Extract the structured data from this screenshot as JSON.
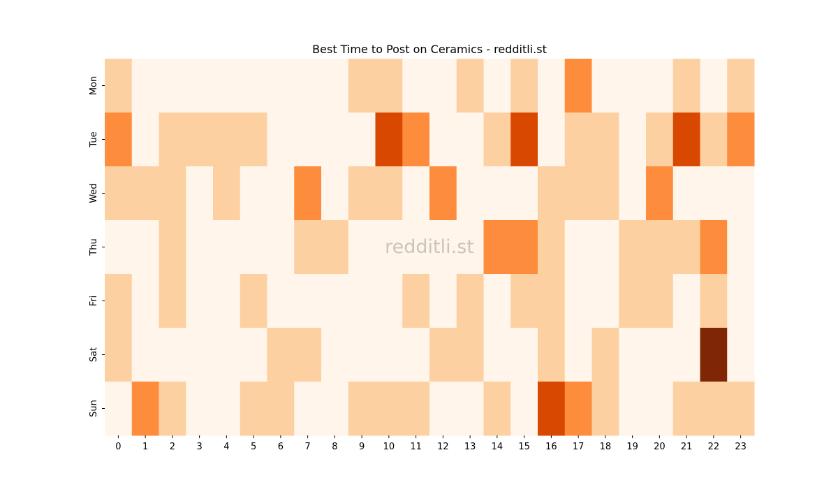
{
  "chart_data": {
    "type": "heatmap",
    "title": "Best Time to Post on Ceramics - redditli.st",
    "watermark": "redditli.st",
    "x": [
      "0",
      "1",
      "2",
      "3",
      "4",
      "5",
      "6",
      "7",
      "8",
      "9",
      "10",
      "11",
      "12",
      "13",
      "14",
      "15",
      "16",
      "17",
      "18",
      "19",
      "20",
      "21",
      "22",
      "23"
    ],
    "y": [
      "Mon",
      "Tue",
      "Wed",
      "Thu",
      "Fri",
      "Sat",
      "Sun"
    ],
    "values": [
      [
        1,
        0,
        0,
        0,
        0,
        0,
        0,
        0,
        0,
        1,
        1,
        0,
        0,
        1,
        0,
        1,
        0,
        2,
        0,
        0,
        0,
        1,
        0,
        1
      ],
      [
        2,
        0,
        1,
        1,
        1,
        1,
        0,
        0,
        0,
        0,
        3,
        2,
        0,
        0,
        1,
        3,
        0,
        1,
        1,
        0,
        1,
        3,
        1,
        2
      ],
      [
        1,
        1,
        1,
        0,
        1,
        0,
        0,
        2,
        0,
        1,
        1,
        0,
        2,
        0,
        0,
        0,
        1,
        1,
        1,
        0,
        2,
        0,
        0,
        0
      ],
      [
        0,
        0,
        1,
        0,
        0,
        0,
        0,
        1,
        1,
        0,
        0,
        0,
        0,
        0,
        2,
        2,
        1,
        0,
        0,
        1,
        1,
        1,
        2,
        0
      ],
      [
        1,
        0,
        1,
        0,
        0,
        1,
        0,
        0,
        0,
        0,
        0,
        1,
        0,
        1,
        0,
        1,
        1,
        0,
        0,
        1,
        1,
        0,
        1,
        0
      ],
      [
        1,
        0,
        0,
        0,
        0,
        0,
        1,
        1,
        0,
        0,
        0,
        0,
        1,
        1,
        0,
        0,
        1,
        0,
        1,
        0,
        0,
        0,
        4,
        0
      ],
      [
        0,
        2,
        1,
        0,
        0,
        1,
        1,
        0,
        0,
        1,
        1,
        1,
        0,
        0,
        1,
        0,
        3,
        2,
        1,
        0,
        0,
        1,
        1,
        1
      ]
    ],
    "colormap": [
      "#fff5eb",
      "#fdd0a2",
      "#fd8d3c",
      "#d94801",
      "#7f2704"
    ]
  }
}
